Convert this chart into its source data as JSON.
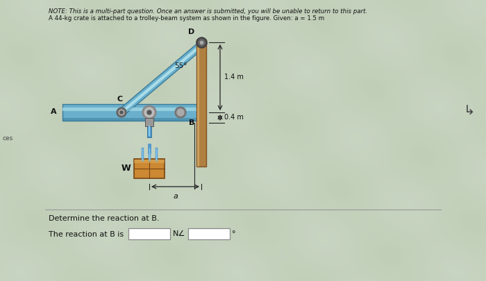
{
  "note_line1": "NOTE: This is a multi-part question. Once an answer is submitted, you will be unable to return to this part.",
  "note_line2": "A 44-kg crate is attached to a trolley-beam system as shown in the figure. Given: a = 1.5 m",
  "question_text": "Determine the reaction at B.",
  "answer_text": "The reaction at B is",
  "label_N": "N∠",
  "label_deg": "°",
  "dim_1_4": "1.4 m",
  "dim_0_4": "0.4 m",
  "dim_a": "a",
  "label_A": "A",
  "label_B": "B",
  "label_C": "C",
  "label_D": "D",
  "label_W": "W",
  "angle_label": "55°",
  "fig_bg": "#c8d4bc",
  "beam_blue": "#6ab0cc",
  "beam_dark": "#3a7a99",
  "beam_light": "#aadde8",
  "rod_blue": "#5599cc",
  "rod_light": "#88ccee",
  "vbar_brown": "#b08040",
  "vbar_light": "#d4aa66",
  "vbar_dark": "#805020",
  "pin_dark": "#444444",
  "pin_light": "#999999",
  "text_color": "#111111",
  "dim_color": "#222222",
  "box_color": "#ffffff",
  "box_edge": "#888888"
}
